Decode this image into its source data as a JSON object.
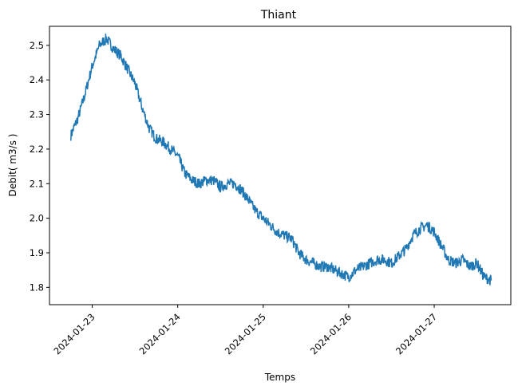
{
  "chart_data": {
    "type": "line",
    "title": "Thiant",
    "xlabel": "Temps",
    "ylabel": "Debit( m3/s )",
    "x_tick_labels": [
      "2024-01-23",
      "2024-01-24",
      "2024-01-25",
      "2024-01-26",
      "2024-01-27"
    ],
    "y_tick_labels": [
      "1.8",
      "1.9",
      "2.0",
      "2.1",
      "2.2",
      "2.3",
      "2.4",
      "2.5"
    ],
    "y_ticks": [
      1.8,
      1.9,
      2.0,
      2.1,
      2.2,
      2.3,
      2.4,
      2.5
    ],
    "ylim": [
      1.75,
      2.555
    ],
    "grid": false,
    "series": [
      {
        "color": "#1f77b4",
        "x": [
          "2024-01-22 18:00",
          "2024-01-22 20:00",
          "2024-01-22 22:00",
          "2024-01-23 00:00",
          "2024-01-23 02:00",
          "2024-01-23 04:00",
          "2024-01-23 06:00",
          "2024-01-23 08:00",
          "2024-01-23 10:00",
          "2024-01-23 12:00",
          "2024-01-23 14:00",
          "2024-01-23 16:00",
          "2024-01-23 18:00",
          "2024-01-23 20:00",
          "2024-01-23 22:00",
          "2024-01-24 00:00",
          "2024-01-24 02:00",
          "2024-01-24 04:00",
          "2024-01-24 06:00",
          "2024-01-24 08:00",
          "2024-01-24 10:00",
          "2024-01-24 12:00",
          "2024-01-24 14:00",
          "2024-01-24 16:00",
          "2024-01-24 18:00",
          "2024-01-24 20:00",
          "2024-01-24 22:00",
          "2024-01-25 00:00",
          "2024-01-25 02:00",
          "2024-01-25 04:00",
          "2024-01-25 06:00",
          "2024-01-25 08:00",
          "2024-01-25 10:00",
          "2024-01-25 12:00",
          "2024-01-25 14:00",
          "2024-01-25 16:00",
          "2024-01-25 18:00",
          "2024-01-25 20:00",
          "2024-01-25 22:00",
          "2024-01-26 00:00",
          "2024-01-26 02:00",
          "2024-01-26 04:00",
          "2024-01-26 06:00",
          "2024-01-26 08:00",
          "2024-01-26 10:00",
          "2024-01-26 12:00",
          "2024-01-26 14:00",
          "2024-01-26 16:00",
          "2024-01-26 18:00",
          "2024-01-26 20:00",
          "2024-01-26 22:00",
          "2024-01-27 00:00",
          "2024-01-27 02:00",
          "2024-01-27 04:00",
          "2024-01-27 06:00",
          "2024-01-27 08:00",
          "2024-01-27 10:00",
          "2024-01-27 12:00",
          "2024-01-27 14:00",
          "2024-01-27 16:00"
        ],
        "y": [
          2.24,
          2.29,
          2.36,
          2.44,
          2.5,
          2.52,
          2.49,
          2.47,
          2.43,
          2.39,
          2.32,
          2.26,
          2.23,
          2.22,
          2.2,
          2.18,
          2.13,
          2.11,
          2.1,
          2.11,
          2.11,
          2.09,
          2.1,
          2.1,
          2.08,
          2.05,
          2.02,
          2.0,
          1.98,
          1.96,
          1.95,
          1.94,
          1.9,
          1.88,
          1.87,
          1.86,
          1.86,
          1.85,
          1.84,
          1.83,
          1.85,
          1.86,
          1.87,
          1.88,
          1.88,
          1.87,
          1.89,
          1.91,
          1.95,
          1.97,
          1.98,
          1.96,
          1.92,
          1.88,
          1.87,
          1.88,
          1.86,
          1.87,
          1.83,
          1.82
        ]
      }
    ]
  }
}
